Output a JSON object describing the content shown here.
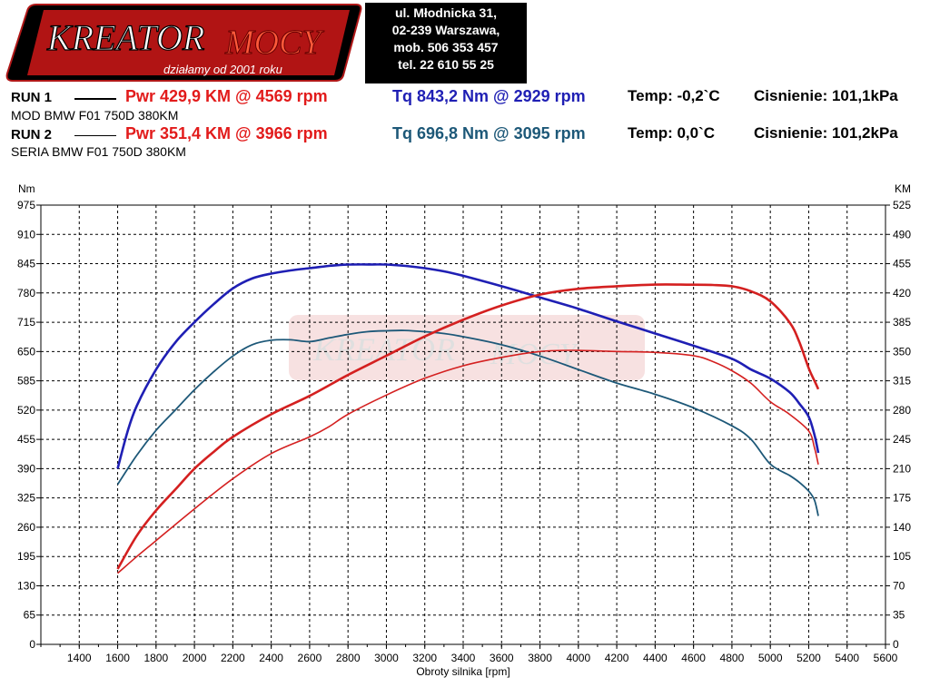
{
  "header": {
    "logo_text_main": "KREATOR",
    "logo_text_accent": "MOCY",
    "logo_tagline": "działamy od 2001 roku",
    "contact": [
      "ul. Młodnicka 31,",
      "02-239  Warszawa,",
      "mob.  506 353 457",
      "tel.  22 610 55 25"
    ]
  },
  "runs": [
    {
      "label": "RUN 1",
      "pwr": "Pwr  429,9 KM @ 4569 rpm",
      "tq": "Tq 843,2 Nm @ 2929 rpm",
      "temp": "Temp: -0,2`C",
      "cis": "Cisnienie: 101,1kPa",
      "desc": "MOD BMW F01 750D 380KM"
    },
    {
      "label": "RUN 2",
      "pwr": "Pwr  351,4 KM @ 3966 rpm",
      "tq": "Tq 696,8 Nm @ 3095 rpm",
      "temp": "Temp: 0,0`C",
      "cis": "Cisnienie: 101,2kPa",
      "desc": "SERIA BMW F01 750D 380KM"
    }
  ],
  "colors": {
    "tq_run1": "#1f1fb4",
    "tq_run2": "#1d5878",
    "pwr_run1": "#d42020",
    "pwr_run2": "#d42020",
    "run1_tq_text": "#1f1fb4",
    "run2_tq_text": "#1d5878",
    "pwr_text": "#e21b1b"
  },
  "chart_data": {
    "type": "line",
    "xlabel": "Obroty silnika [rpm]",
    "ylabel_left": "Nm",
    "ylabel_right": "KM",
    "xlim": [
      1200,
      5600
    ],
    "ylim_left": [
      0,
      975
    ],
    "ylim_right": [
      0,
      525
    ],
    "x_ticks": [
      1400,
      1600,
      1800,
      2000,
      2200,
      2400,
      2600,
      2800,
      3000,
      3200,
      3400,
      3600,
      3800,
      4000,
      4200,
      4400,
      4600,
      4800,
      5000,
      5200,
      5400,
      5600
    ],
    "y_ticks_left": [
      0,
      65,
      130,
      195,
      260,
      325,
      390,
      455,
      520,
      585,
      650,
      715,
      780,
      845,
      910,
      975
    ],
    "y_ticks_right": [
      0,
      35,
      70,
      105,
      140,
      175,
      210,
      245,
      280,
      315,
      350,
      385,
      420,
      455,
      490,
      525
    ],
    "grid": true,
    "series": [
      {
        "name": "Tq RUN 1",
        "axis": "left",
        "x": [
          1600,
          1650,
          1700,
          1800,
          1900,
          2000,
          2100,
          2200,
          2300,
          2400,
          2500,
          2600,
          2700,
          2800,
          2929,
          3000,
          3100,
          3200,
          3300,
          3400,
          3600,
          3800,
          4000,
          4200,
          4400,
          4600,
          4800,
          4900,
          5000,
          5100,
          5150,
          5200,
          5230,
          5250
        ],
        "y": [
          390,
          470,
          530,
          610,
          670,
          715,
          755,
          790,
          812,
          823,
          830,
          835,
          840,
          843,
          843.2,
          843,
          840,
          835,
          828,
          818,
          795,
          770,
          745,
          717,
          690,
          663,
          634,
          610,
          590,
          560,
          535,
          505,
          465,
          425
        ]
      },
      {
        "name": "Tq RUN 2",
        "axis": "left",
        "x": [
          1600,
          1700,
          1800,
          1900,
          2000,
          2100,
          2200,
          2300,
          2400,
          2500,
          2600,
          2700,
          2800,
          2900,
          3000,
          3095,
          3200,
          3300,
          3400,
          3600,
          3800,
          4000,
          4200,
          4400,
          4600,
          4800,
          4900,
          5000,
          5100,
          5150,
          5200,
          5230,
          5250
        ],
        "y": [
          355,
          420,
          475,
          520,
          565,
          605,
          640,
          665,
          675,
          676,
          672,
          680,
          688,
          694,
          696,
          696.8,
          694,
          690,
          683,
          665,
          640,
          610,
          580,
          555,
          525,
          485,
          455,
          400,
          375,
          360,
          340,
          320,
          285
        ]
      },
      {
        "name": "Pwr RUN 1",
        "axis": "right",
        "x": [
          1600,
          1700,
          1800,
          1900,
          2000,
          2100,
          2200,
          2400,
          2600,
          2800,
          3000,
          3200,
          3400,
          3600,
          3800,
          4000,
          4200,
          4400,
          4569,
          4700,
          4800,
          4900,
          5000,
          5100,
          5150,
          5200,
          5230,
          5250
        ],
        "y": [
          90,
          130,
          160,
          185,
          210,
          230,
          248,
          275,
          297,
          322,
          345,
          368,
          388,
          405,
          418,
          425,
          428,
          430,
          429.9,
          429.5,
          428,
          422,
          410,
          385,
          362,
          330,
          315,
          305
        ]
      },
      {
        "name": "Pwr RUN 2",
        "axis": "right",
        "x": [
          1600,
          1700,
          1800,
          2000,
          2200,
          2400,
          2600,
          2700,
          2800,
          3000,
          3200,
          3400,
          3600,
          3800,
          3966,
          4200,
          4400,
          4600,
          4700,
          4800,
          4900,
          5000,
          5100,
          5200,
          5230,
          5250
        ],
        "y": [
          85,
          105,
          124,
          162,
          198,
          228,
          248,
          260,
          275,
          298,
          318,
          333,
          343,
          350,
          351.4,
          350,
          349,
          345,
          338,
          327,
          312,
          290,
          275,
          255,
          235,
          215
        ]
      }
    ]
  }
}
